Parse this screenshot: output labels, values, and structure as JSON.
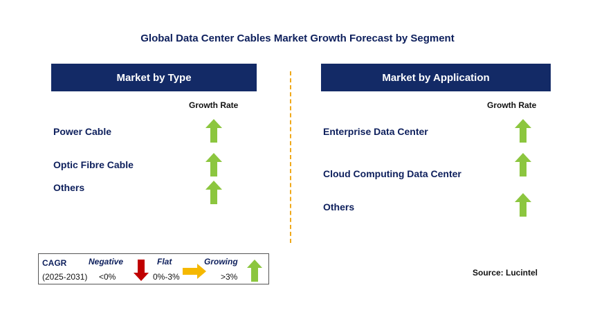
{
  "title": "Global Data Center Cables Market Growth Forecast by Segment",
  "left_panel": {
    "header": "Market by Type",
    "growth_label": "Growth Rate",
    "items": [
      {
        "label": "Power Cable",
        "trend": "growing"
      },
      {
        "label": "Optic Fibre Cable",
        "trend": "growing"
      },
      {
        "label": "Others",
        "trend": "growing"
      }
    ]
  },
  "right_panel": {
    "header": "Market by Application",
    "growth_label": "Growth Rate",
    "items": [
      {
        "label": "Enterprise Data Center",
        "trend": "growing"
      },
      {
        "label": "Cloud Computing Data Center",
        "trend": "growing"
      },
      {
        "label": "Others",
        "trend": "growing"
      }
    ]
  },
  "legend": {
    "cagr_label": "CAGR",
    "period": "(2025-2031)",
    "negative_label": "Negative",
    "negative_range": "<0%",
    "flat_label": "Flat",
    "flat_range": "0%-3%",
    "growing_label": "Growing",
    "growing_range": ">3%"
  },
  "source": "Source: Lucintel",
  "colors": {
    "header_bg": "#132a66",
    "title_text": "#0d1f5c",
    "growing_arrow": "#8cc63f",
    "negative_arrow": "#c00000",
    "flat_arrow": "#f5b800",
    "divider": "#f0a91a"
  },
  "icons": {
    "growing": "up-arrow-icon",
    "negative": "down-arrow-icon",
    "flat": "right-arrow-icon"
  }
}
